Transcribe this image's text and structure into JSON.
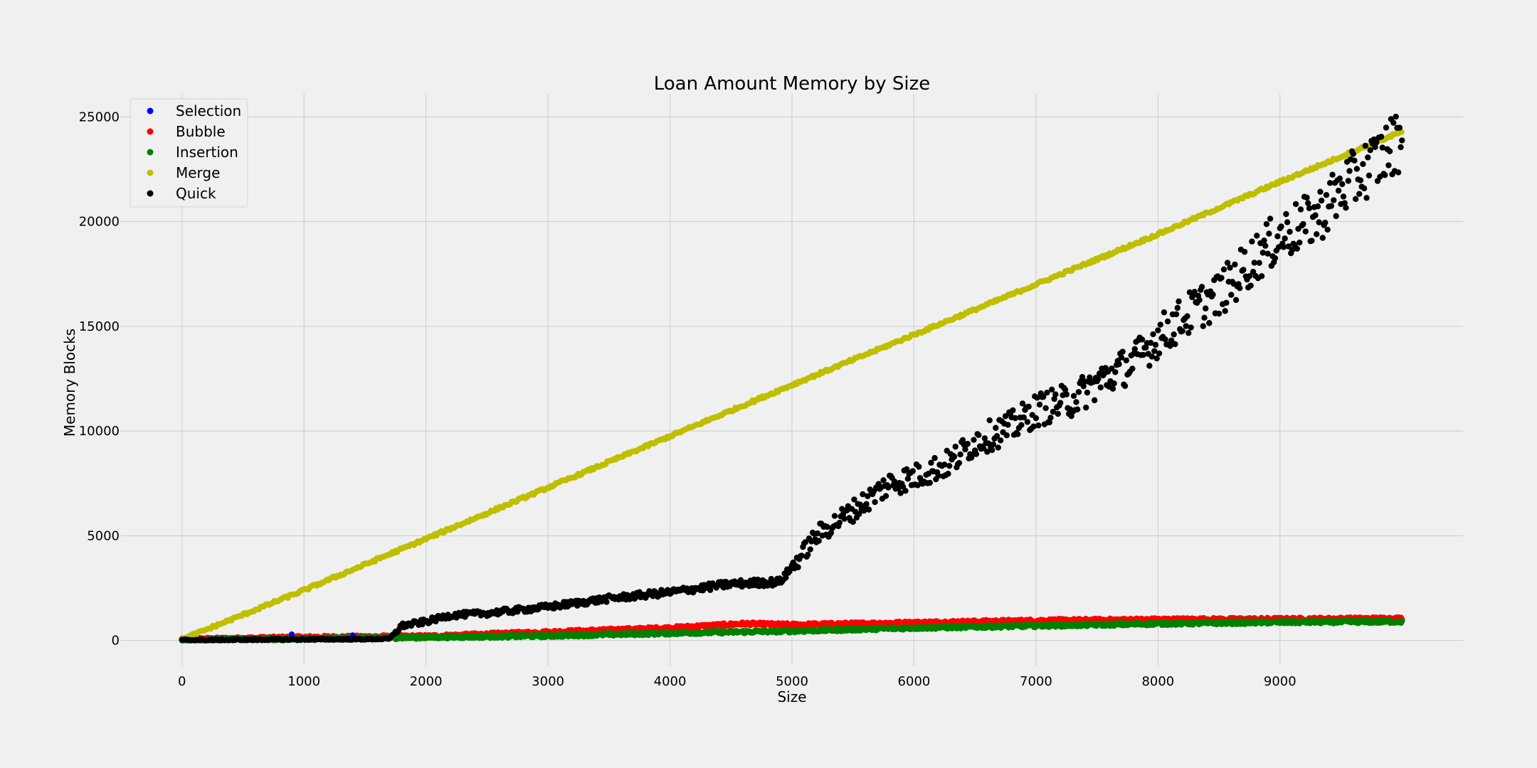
{
  "chart_data": {
    "type": "scatter",
    "title": "Loan Amount Memory by Size",
    "xlabel": "Size",
    "ylabel": "Memory Blocks",
    "xlim": [
      -500,
      10500
    ],
    "ylim": [
      -1200,
      26100
    ],
    "xticks": [
      0,
      1000,
      2000,
      3000,
      4000,
      5000,
      6000,
      7000,
      8000,
      9000
    ],
    "yticks": [
      0,
      5000,
      10000,
      15000,
      20000,
      25000
    ],
    "grid": true,
    "legend_position": "top-left",
    "series": [
      {
        "name": "Selection",
        "color": "#0000ff",
        "points": [
          [
            0,
            40
          ],
          [
            900,
            300
          ],
          [
            1400,
            250
          ]
        ]
      },
      {
        "name": "Bubble",
        "color": "#ff0000",
        "points": [
          [
            0,
            50
          ],
          [
            1000,
            150
          ],
          [
            2000,
            200
          ],
          [
            3000,
            400
          ],
          [
            4000,
            600
          ],
          [
            4600,
            800
          ],
          [
            5000,
            750
          ],
          [
            6000,
            850
          ],
          [
            7000,
            950
          ],
          [
            8000,
            1000
          ],
          [
            9000,
            1020
          ],
          [
            10000,
            1050
          ]
        ]
      },
      {
        "name": "Insertion",
        "color": "#008000",
        "points": [
          [
            0,
            30
          ],
          [
            1000,
            80
          ],
          [
            2000,
            150
          ],
          [
            3000,
            220
          ],
          [
            4000,
            350
          ],
          [
            5000,
            450
          ],
          [
            6000,
            600
          ],
          [
            7000,
            700
          ],
          [
            8000,
            800
          ],
          [
            9000,
            870
          ],
          [
            10000,
            900
          ]
        ]
      },
      {
        "name": "Merge",
        "color": "#bfbf00",
        "points": [
          [
            0,
            50
          ],
          [
            1000,
            2400
          ],
          [
            2000,
            4850
          ],
          [
            3000,
            7300
          ],
          [
            4000,
            9750
          ],
          [
            5000,
            12200
          ],
          [
            6000,
            14600
          ],
          [
            7000,
            17000
          ],
          [
            8000,
            19400
          ],
          [
            9000,
            21900
          ],
          [
            10000,
            24300
          ]
        ]
      },
      {
        "name": "Quick",
        "color": "#000000",
        "points": [
          [
            0,
            20
          ],
          [
            500,
            40
          ],
          [
            1000,
            50
          ],
          [
            1500,
            60
          ],
          [
            1700,
            80
          ],
          [
            1800,
            700
          ],
          [
            2000,
            900
          ],
          [
            2200,
            1200
          ],
          [
            2500,
            1300
          ],
          [
            3000,
            1600
          ],
          [
            3500,
            2000
          ],
          [
            4000,
            2300
          ],
          [
            4500,
            2700
          ],
          [
            4900,
            2800
          ],
          [
            5000,
            3500
          ],
          [
            5200,
            5000
          ],
          [
            5500,
            6200
          ],
          [
            5800,
            7500
          ],
          [
            6000,
            7800
          ],
          [
            6300,
            8500
          ],
          [
            6500,
            9500
          ],
          [
            6800,
            10200
          ],
          [
            7000,
            11000
          ],
          [
            7300,
            11500
          ],
          [
            7500,
            12300
          ],
          [
            7800,
            13300
          ],
          [
            8000,
            14500
          ],
          [
            8300,
            15800
          ],
          [
            8500,
            16500
          ],
          [
            8800,
            18300
          ],
          [
            9000,
            19300
          ],
          [
            9300,
            20200
          ],
          [
            9500,
            21500
          ],
          [
            9800,
            23000
          ],
          [
            10000,
            24000
          ]
        ]
      }
    ]
  }
}
